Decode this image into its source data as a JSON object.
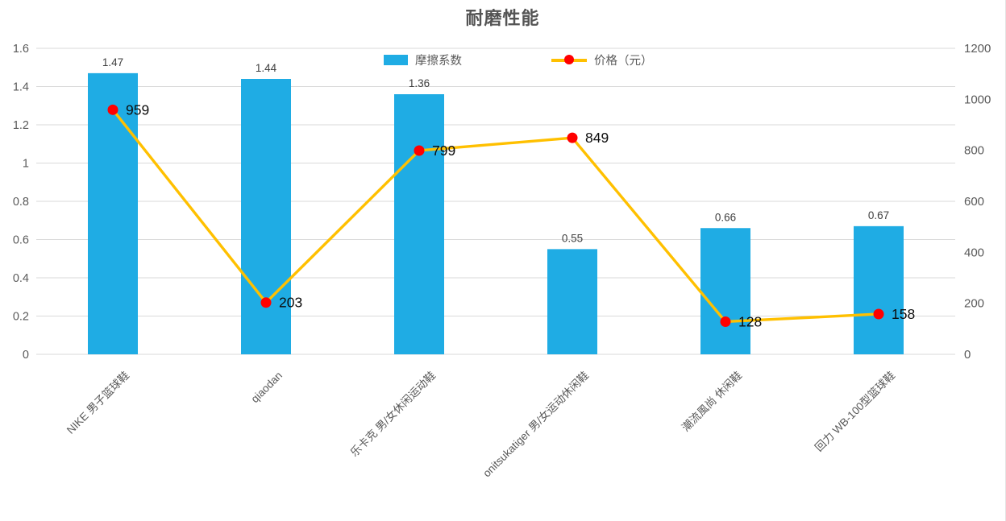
{
  "chart_data": {
    "type": "bar",
    "combo": "bar+line",
    "title": "耐磨性能",
    "categories": [
      "NIKE 男子篮球鞋",
      "qiaodan",
      "乐卡克 男/女休闲运动鞋",
      "onitsukatiger 男/女运动休闲鞋",
      "潮流風尚 休闲鞋",
      "回力 WB-100型篮球鞋"
    ],
    "series": [
      {
        "name": "摩擦系数",
        "type": "bar",
        "axis": "left",
        "color": "#1FACE4",
        "values": [
          1.47,
          1.44,
          1.36,
          0.55,
          0.66,
          0.67
        ],
        "labels": [
          "1.47",
          "1.44",
          "1.36",
          "0.55",
          "0.66",
          "0.67"
        ]
      },
      {
        "name": "价格（元）",
        "type": "line",
        "axis": "right",
        "color": "#FFC000",
        "marker_color": "#FF0000",
        "values": [
          959,
          203,
          799,
          849,
          128,
          158
        ],
        "labels": [
          "959",
          "203",
          "799",
          "849",
          "128",
          "158"
        ]
      }
    ],
    "left_axis": {
      "min": 0,
      "max": 1.6,
      "step": 0.2,
      "ticks": [
        "1.6",
        "1.4",
        "1.2",
        "1",
        "0.8",
        "0.6",
        "0.4",
        "0.2",
        "0"
      ]
    },
    "right_axis": {
      "min": 0,
      "max": 1200,
      "step": 200,
      "ticks": [
        "1200",
        "1000",
        "800",
        "600",
        "400",
        "200",
        "0"
      ]
    },
    "grid": true,
    "legend_position": "top",
    "colors": {
      "title": "#545454",
      "grid": "#D9D9D9",
      "axis_text": "#595959",
      "bar_label": "#404040",
      "price_label": "#0d0d0d"
    }
  }
}
